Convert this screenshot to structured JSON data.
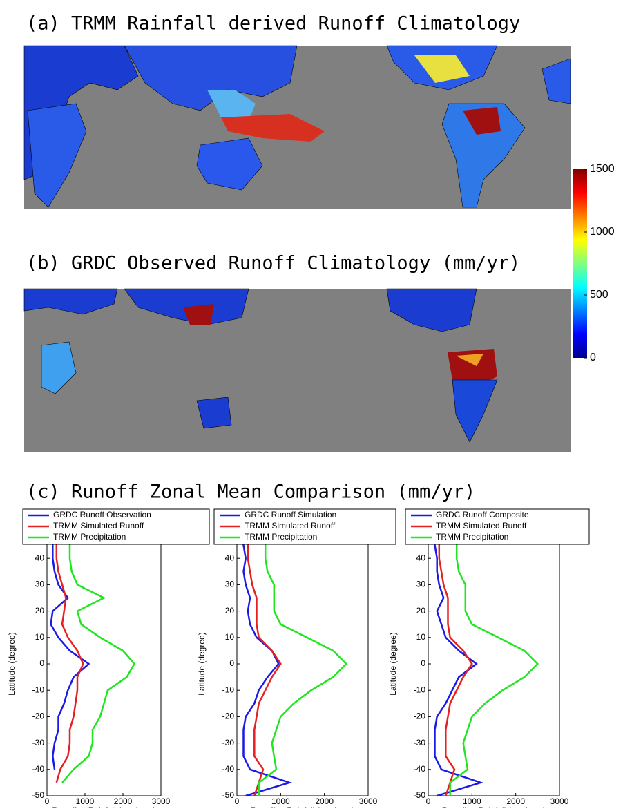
{
  "panel_a_title": "(a) TRMM Rainfall derived Runoff Climatology",
  "panel_b_title": "(b) GRDC Observed Runoff Climatology (mm/yr)",
  "panel_c_title": "(c) Runoff Zonal Mean Comparison (mm/yr)",
  "colorbar": {
    "lim": [
      0,
      1500
    ],
    "ticks": [
      0,
      500,
      1000,
      1500
    ]
  },
  "chart_data": [
    {
      "type": "line",
      "xlabel": "Runoff or Rainfall (mm/year)",
      "ylabel": "Latitude (degree)",
      "xlim": [
        0,
        3000
      ],
      "xticks": [
        0,
        1000,
        2000,
        3000
      ],
      "ylim": [
        -50,
        50
      ],
      "yticks": [
        -50,
        -40,
        -30,
        -20,
        -10,
        0,
        10,
        20,
        30,
        40,
        50
      ],
      "y": [
        50,
        45,
        40,
        35,
        30,
        25,
        20,
        15,
        10,
        5,
        0,
        -5,
        -10,
        -15,
        -20,
        -25,
        -30,
        -35,
        -40,
        -45,
        -50
      ],
      "series": [
        {
          "name": "GRDC Runoff Observation",
          "color": "#1a1ae6",
          "values": [
            150,
            150,
            150,
            200,
            300,
            550,
            150,
            100,
            300,
            600,
            1100,
            700,
            550,
            450,
            300,
            300,
            200,
            150,
            200,
            null,
            null
          ]
        },
        {
          "name": "TRMM Simulated Runoff",
          "color": "#e62020",
          "values": [
            300,
            250,
            250,
            300,
            400,
            500,
            450,
            400,
            550,
            800,
            950,
            800,
            800,
            750,
            700,
            600,
            600,
            550,
            350,
            250,
            null
          ]
        },
        {
          "name": "TRMM Precipitation",
          "color": "#20e620",
          "values": [
            650,
            600,
            600,
            650,
            800,
            1500,
            800,
            900,
            1400,
            2000,
            2300,
            2100,
            1600,
            1500,
            1400,
            1200,
            1200,
            1100,
            700,
            400,
            null
          ]
        }
      ]
    },
    {
      "type": "line",
      "xlabel": "Runoff or Rainfall (mm/year)",
      "ylabel": "Latitude (degree)",
      "xlim": [
        0,
        3000
      ],
      "xticks": [
        0,
        1000,
        2000,
        3000
      ],
      "ylim": [
        -50,
        50
      ],
      "yticks": [
        -50,
        -40,
        -30,
        -20,
        -10,
        0,
        10,
        20,
        30,
        40,
        50
      ],
      "y": [
        50,
        45,
        40,
        35,
        30,
        25,
        20,
        15,
        10,
        5,
        0,
        -5,
        -10,
        -15,
        -20,
        -25,
        -30,
        -35,
        -40,
        -45,
        -50
      ],
      "series": [
        {
          "name": "GRDC Runoff Simulation",
          "color": "#1a1ae6",
          "values": [
            150,
            150,
            200,
            150,
            200,
            300,
            250,
            300,
            450,
            800,
            950,
            700,
            500,
            400,
            200,
            150,
            150,
            150,
            300,
            1200,
            200
          ]
        },
        {
          "name": "TRMM Simulated Runoff",
          "color": "#e62020",
          "values": [
            250,
            250,
            250,
            300,
            350,
            450,
            450,
            450,
            500,
            800,
            1000,
            800,
            650,
            500,
            450,
            400,
            400,
            400,
            600,
            500,
            400
          ]
        },
        {
          "name": "TRMM Precipitation",
          "color": "#20e620",
          "values": [
            700,
            650,
            650,
            700,
            850,
            850,
            850,
            1000,
            1600,
            2200,
            2500,
            2200,
            1700,
            1300,
            1000,
            900,
            800,
            850,
            900,
            500,
            500
          ]
        }
      ]
    },
    {
      "type": "line",
      "xlabel": "Runoff or Rainfall (mm/year)",
      "ylabel": "Latitude (degree)",
      "xlim": [
        0,
        3000
      ],
      "xticks": [
        0,
        1000,
        2000,
        3000
      ],
      "ylim": [
        -50,
        50
      ],
      "yticks": [
        -50,
        -40,
        -30,
        -20,
        -10,
        0,
        10,
        20,
        30,
        40,
        50
      ],
      "y": [
        50,
        45,
        40,
        35,
        30,
        25,
        20,
        15,
        10,
        5,
        0,
        -5,
        -10,
        -15,
        -20,
        -25,
        -30,
        -35,
        -40,
        -45,
        -50
      ],
      "series": [
        {
          "name": "GRDC Runoff Composite",
          "color": "#1a1ae6",
          "values": [
            150,
            150,
            200,
            200,
            250,
            350,
            200,
            300,
            400,
            700,
            1100,
            700,
            550,
            400,
            200,
            150,
            150,
            150,
            300,
            1200,
            200
          ]
        },
        {
          "name": "TRMM Simulated Runoff",
          "color": "#e62020",
          "values": [
            250,
            250,
            250,
            300,
            350,
            450,
            450,
            450,
            500,
            800,
            1000,
            800,
            650,
            500,
            450,
            400,
            400,
            400,
            600,
            500,
            400
          ]
        },
        {
          "name": "TRMM Precipitation",
          "color": "#20e620",
          "values": [
            700,
            650,
            650,
            700,
            850,
            850,
            850,
            1000,
            1600,
            2200,
            2500,
            2200,
            1700,
            1300,
            1000,
            900,
            800,
            850,
            900,
            500,
            500
          ]
        }
      ]
    }
  ]
}
